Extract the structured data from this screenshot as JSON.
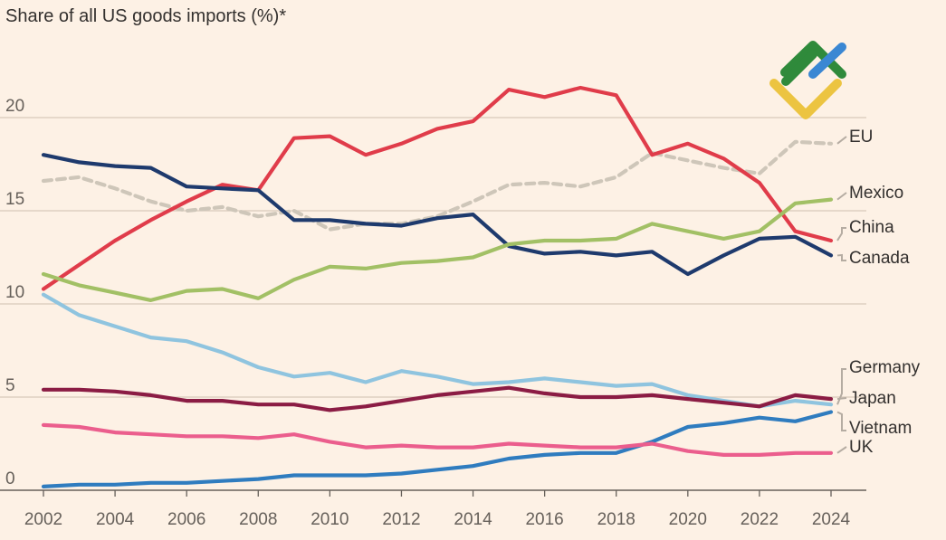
{
  "chart_data": {
    "type": "line",
    "title": "Share of all US goods imports (%)*",
    "xlabel": "",
    "ylabel": "",
    "xlim": [
      2002,
      2024
    ],
    "ylim": [
      0,
      22
    ],
    "x_ticks": [
      "2002",
      "2004",
      "2006",
      "2008",
      "2010",
      "2012",
      "2014",
      "2016",
      "2018",
      "2020",
      "2022",
      "2024"
    ],
    "y_ticks": [
      "0",
      "5",
      "10",
      "15",
      "20"
    ],
    "x": [
      2002,
      2003,
      2004,
      2005,
      2006,
      2007,
      2008,
      2009,
      2010,
      2011,
      2012,
      2013,
      2014,
      2015,
      2016,
      2017,
      2018,
      2019,
      2020,
      2021,
      2022,
      2023,
      2024
    ],
    "series": [
      {
        "name": "EU",
        "color": "#cec6b9",
        "dashed": true,
        "values": [
          16.6,
          16.8,
          16.2,
          15.5,
          15.0,
          15.2,
          14.7,
          15.0,
          14.0,
          14.3,
          14.3,
          14.7,
          15.5,
          16.4,
          16.5,
          16.3,
          16.8,
          18.1,
          17.7,
          17.3,
          17.0,
          18.7,
          18.6
        ]
      },
      {
        "name": "China",
        "color": "#e03c4a",
        "values": [
          10.8,
          12.1,
          13.4,
          14.5,
          15.5,
          16.4,
          16.1,
          18.9,
          19.0,
          18.0,
          18.6,
          19.4,
          19.8,
          21.5,
          21.1,
          21.6,
          21.2,
          18.0,
          18.6,
          17.8,
          16.5,
          13.9,
          13.4
        ]
      },
      {
        "name": "Canada",
        "color": "#1e3a6d",
        "values": [
          18.0,
          17.6,
          17.4,
          17.3,
          16.3,
          16.2,
          16.1,
          14.5,
          14.5,
          14.3,
          14.2,
          14.6,
          14.8,
          13.1,
          12.7,
          12.8,
          12.6,
          12.8,
          11.6,
          12.6,
          13.5,
          13.6,
          12.6
        ]
      },
      {
        "name": "Mexico",
        "color": "#a2c065",
        "values": [
          11.6,
          11.0,
          10.6,
          10.2,
          10.7,
          10.8,
          10.3,
          11.3,
          12.0,
          11.9,
          12.2,
          12.3,
          12.5,
          13.2,
          13.4,
          13.4,
          13.5,
          14.3,
          13.9,
          13.5,
          13.9,
          15.4,
          15.6
        ]
      },
      {
        "name": "Germany",
        "color": "#8fc4df",
        "values": [
          10.5,
          9.4,
          8.8,
          8.2,
          8.0,
          7.4,
          6.6,
          6.1,
          6.3,
          5.8,
          6.4,
          6.1,
          5.7,
          5.8,
          6.0,
          5.8,
          5.6,
          5.7,
          5.1,
          4.8,
          4.5,
          4.8,
          4.6
        ]
      },
      {
        "name": "Japan",
        "color": "#8b1c44",
        "values": [
          5.4,
          5.4,
          5.3,
          5.1,
          4.8,
          4.8,
          4.6,
          4.6,
          4.3,
          4.5,
          4.8,
          5.1,
          5.3,
          5.5,
          5.2,
          5.0,
          5.0,
          5.1,
          4.9,
          4.7,
          4.5,
          5.1,
          4.9
        ]
      },
      {
        "name": "Vietnam",
        "color": "#2f7cbf",
        "values": [
          0.2,
          0.3,
          0.3,
          0.4,
          0.4,
          0.5,
          0.6,
          0.8,
          0.8,
          0.8,
          0.9,
          1.1,
          1.3,
          1.7,
          1.9,
          2.0,
          2.0,
          2.6,
          3.4,
          3.6,
          3.9,
          3.7,
          4.2
        ]
      },
      {
        "name": "UK",
        "color": "#eb5e8d",
        "values": [
          3.5,
          3.4,
          3.1,
          3.0,
          2.9,
          2.9,
          2.8,
          3.0,
          2.6,
          2.3,
          2.4,
          2.3,
          2.3,
          2.5,
          2.4,
          2.3,
          2.3,
          2.5,
          2.1,
          1.9,
          1.9,
          2.0,
          2.0
        ]
      }
    ],
    "label_order": [
      "EU",
      "Mexico",
      "China",
      "Canada",
      "Germany",
      "Japan",
      "Vietnam",
      "UK"
    ],
    "grid": true,
    "legend": "direct labels on right"
  }
}
